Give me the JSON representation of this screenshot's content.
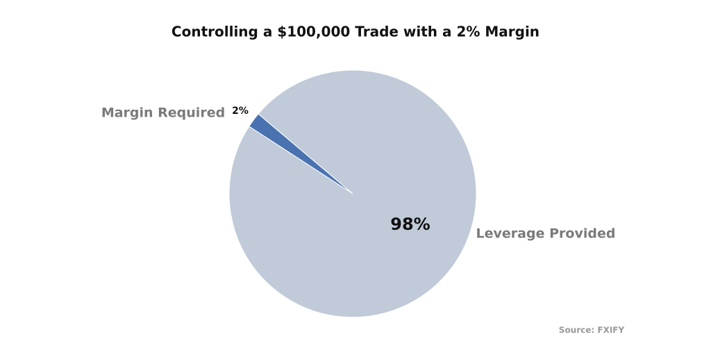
{
  "chart_data": {
    "type": "pie",
    "title": "Controlling a $100,000 Trade with a 2% Margin",
    "categories": [
      "Margin Required",
      "Leverage Provided"
    ],
    "values": [
      2,
      98
    ],
    "value_labels": [
      "2%",
      "98%"
    ],
    "colors": [
      "#4a72b0",
      "#c0cad8"
    ],
    "source": "Source: FXIFY"
  }
}
